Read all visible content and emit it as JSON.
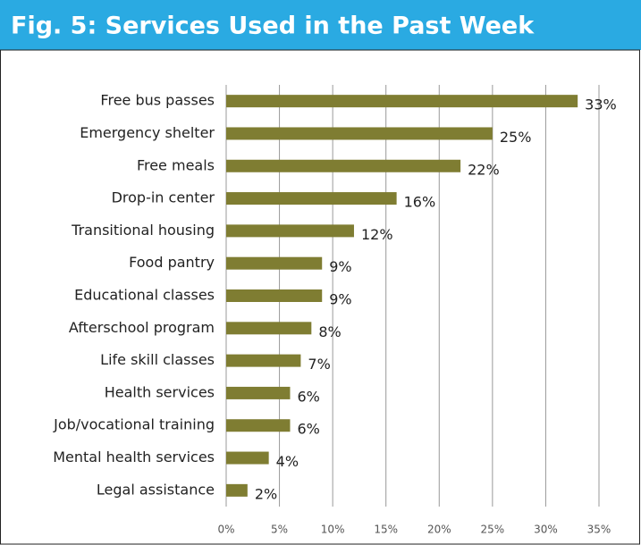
{
  "chart_data": {
    "type": "bar",
    "orientation": "horizontal",
    "title": "Fig. 5: Services Used in the Past Week",
    "categories": [
      "Free bus passes",
      "Emergency shelter",
      "Free meals",
      "Drop-in center",
      "Transitional housing",
      "Food pantry",
      "Educational classes",
      "Afterschool program",
      "Life skill classes",
      "Health services",
      "Job/vocational training",
      "Mental health services",
      "Legal assistance"
    ],
    "values": [
      33,
      25,
      22,
      16,
      12,
      9,
      9,
      8,
      7,
      6,
      6,
      4,
      2
    ],
    "value_labels": [
      "33%",
      "25%",
      "22%",
      "16%",
      "12%",
      "9%",
      "9%",
      "8%",
      "7%",
      "6%",
      "6%",
      "4%",
      "2%"
    ],
    "color": "#7f7d32",
    "xlim": [
      0,
      35
    ],
    "xticks": [
      {
        "value": 0,
        "label": "0%"
      },
      {
        "value": 5,
        "label": "5%"
      },
      {
        "value": 10,
        "label": "10%"
      },
      {
        "value": 15,
        "label": "15%"
      },
      {
        "value": 20,
        "label": "20%"
      },
      {
        "value": 25,
        "label": "25%"
      },
      {
        "value": 30,
        "label": "30%"
      },
      {
        "value": 35,
        "label": "35%"
      }
    ],
    "grid": true
  }
}
